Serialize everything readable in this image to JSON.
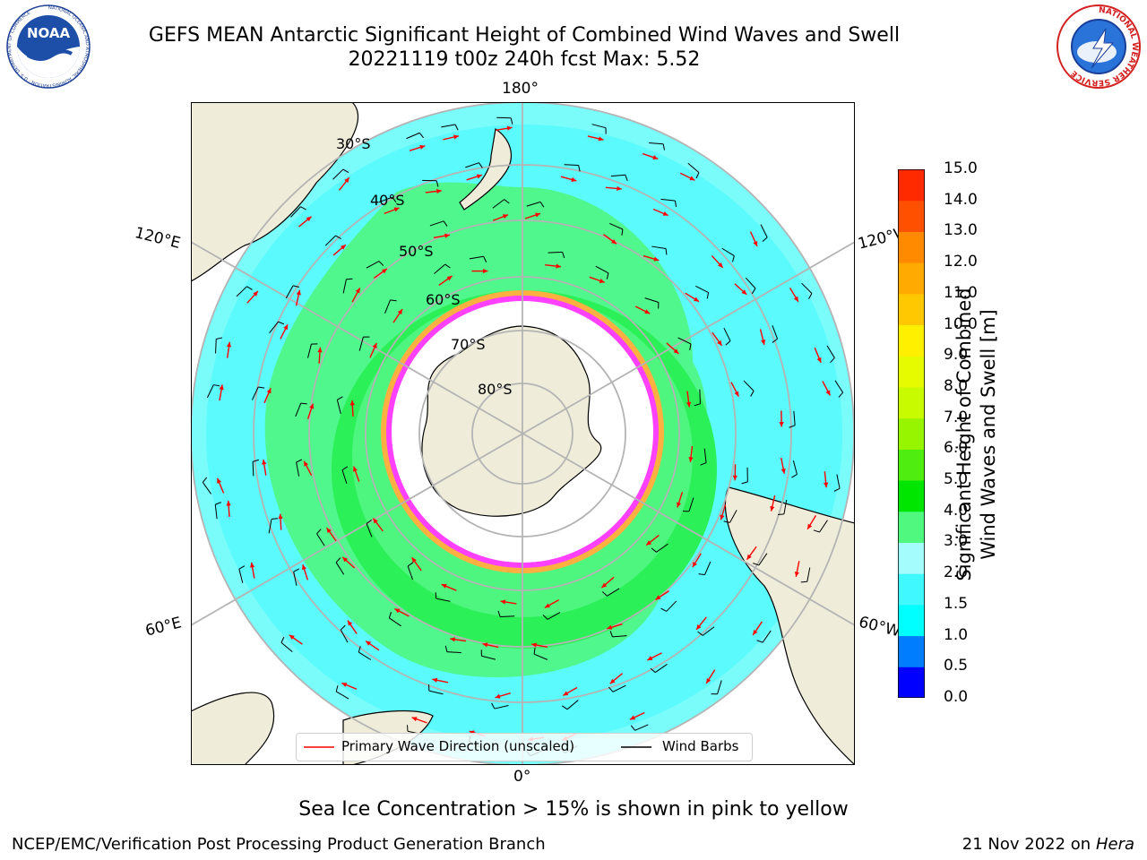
{
  "header": {
    "title_line1": "GEFS MEAN Antarctic Significant Height of Combined Wind Waves and Swell",
    "title_line2": "20221119 t00z 240h fcst   Max: 5.52"
  },
  "logos": {
    "left": {
      "name": "noaa-logo",
      "text": "NOAA",
      "ring_text": "NATIONAL OCEANIC AND ATMOSPHERIC ADMINISTRATION · U.S. DEPARTMENT OF COMMERCE"
    },
    "right": {
      "name": "nws-logo",
      "ring_text": "NATIONAL WEATHER SERVICE"
    }
  },
  "map": {
    "projection": "south-polar-stereographic",
    "longitude_labels": {
      "top": "180°",
      "bottom": "0°",
      "upper_left": "120°E",
      "upper_right": "120°W",
      "lower_left": "60°E",
      "lower_right": "60°W"
    },
    "latitude_labels": [
      "30°S",
      "40°S",
      "50°S",
      "60°S",
      "70°S",
      "80°S"
    ],
    "colors": {
      "land": "#efedda",
      "ice_free_inner": "#ffffff",
      "ocean_low": "#7afcfb",
      "ocean_mid": "#3cf7ff",
      "band_green": "#4ef680",
      "band_dark": "#00e600",
      "ice_pink": "#ff40ff",
      "ice_orange": "#ffb040",
      "arrow": "#ff0000",
      "barb": "#000000",
      "grid": "#b4b4b4"
    }
  },
  "legend": {
    "wave_label": "Primary Wave Direction (unscaled)",
    "barb_label": "Wind Barbs"
  },
  "colorbar": {
    "label_line1": "Significant Height of Combined",
    "label_line2": "Wind Waves and Swell [m]",
    "ticks": [
      "0.0",
      "0.5",
      "1.0",
      "1.5",
      "2.0",
      "3.0",
      "4.0",
      "5.0",
      "6.0",
      "7.0",
      "8.0",
      "9.0",
      "10.0",
      "11.0",
      "12.0",
      "13.0",
      "14.0",
      "15.0"
    ],
    "colors": [
      "#0000ff",
      "#007dff",
      "#00ffff",
      "#40f8ff",
      "#a5fcfc",
      "#50f880",
      "#00e600",
      "#50ee10",
      "#98f500",
      "#c8fa00",
      "#e6fa00",
      "#fff000",
      "#ffc800",
      "#ffaa00",
      "#ff8a00",
      "#ff5000",
      "#ff2a00"
    ]
  },
  "footer": {
    "sea_ice_note": "Sea Ice Concentration > 15% is shown in pink to yellow",
    "branch": "NCEP/EMC/Verification Post Processing Product Generation Branch",
    "date": "21 Nov 2022 on",
    "host": "Hera"
  }
}
